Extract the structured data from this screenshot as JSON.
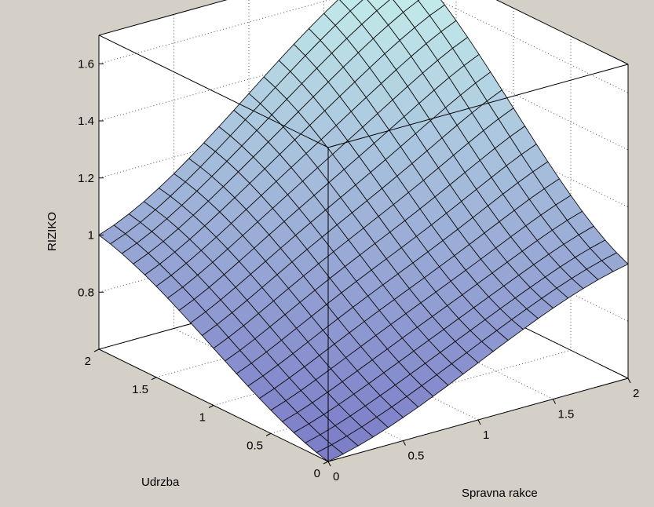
{
  "figure": {
    "background_color": "#d4d0c8"
  },
  "chart_data": {
    "type": "surface",
    "title": "",
    "xlabel": "Spravna rakce",
    "ylabel": "Udrzba",
    "zlabel": "RIZIKO",
    "xlim": [
      0,
      2
    ],
    "ylim": [
      0,
      2
    ],
    "zlim": [
      0.6,
      1.7
    ],
    "xticks": [
      "0",
      "0.5",
      "1",
      "1.5",
      "2"
    ],
    "yticks": [
      "0",
      "0.5",
      "1",
      "1.5",
      "2"
    ],
    "zticks": [
      "0.8",
      "1",
      "1.2",
      "1.4",
      "1.6"
    ],
    "grid": true,
    "grid_size": [
      21,
      21
    ],
    "colormap": "winter-like light blue to lavender",
    "color_low": "#7c7cc8",
    "color_high": "#c8f4ec",
    "corner_values": {
      "x0_y0": 0.6,
      "x2_y0": 1.0,
      "x0_y2": 1.0,
      "x2_y2": 1.7
    }
  }
}
